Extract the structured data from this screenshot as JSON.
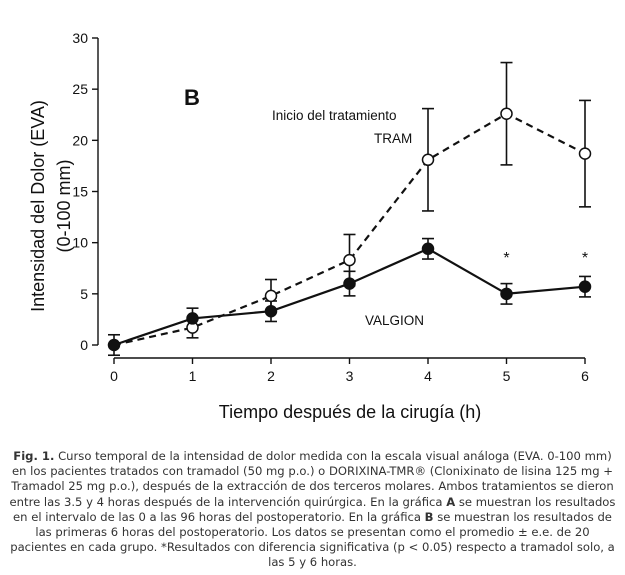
{
  "chart_data": {
    "type": "line",
    "panel_label": "B",
    "xlabel": "Tiempo después de la cirugía (h)",
    "ylabel_line1": "Intensidad del Dolor (EVA)",
    "ylabel_line2": "(0-100 mm)",
    "xlim": [
      0,
      6
    ],
    "ylim": [
      0,
      30
    ],
    "x_ticks": [
      "0",
      "1",
      "2",
      "3",
      "4",
      "5",
      "6"
    ],
    "y_ticks": [
      "0",
      "5",
      "10",
      "15",
      "20",
      "25",
      "30"
    ],
    "x": [
      0,
      1,
      2,
      3,
      4,
      5,
      6
    ],
    "series": [
      {
        "name": "VALGION",
        "style": "solid",
        "marker": "filled-circle",
        "values": [
          0,
          2.6,
          3.3,
          6.0,
          9.4,
          5.0,
          5.7
        ],
        "errors": [
          1.0,
          1.0,
          1.0,
          1.2,
          1.0,
          1.0,
          1.0
        ]
      },
      {
        "name": "TRAM",
        "style": "dashed",
        "marker": "open-circle",
        "values": [
          0,
          1.7,
          4.8,
          8.3,
          18.1,
          22.6,
          18.7
        ],
        "errors": [
          0,
          1.0,
          1.6,
          2.5,
          5.0,
          5.0,
          5.2
        ]
      }
    ],
    "annotations": {
      "inicio": "Inicio del tratamiento",
      "tram": "TRAM",
      "valgion": "VALGION",
      "star": "*"
    },
    "significant_x": [
      5,
      6
    ]
  },
  "caption": {
    "fig_label": "Fig. 1.",
    "p1": " Curso temporal de la intensidad de dolor medida con la escala visual análoga (EVA. 0-100 mm) en los pacientes tratados con tramadol (50 mg p.o.) o DORIXINA-TMR® (Clonixinato de lisina 125 mg + Tramadol 25 mg p.o.), después de la extracción de dos terceros molares. Ambos tratamientos se dieron entre las 3.5 y 4 horas después de la intervención quirúrgica. En la gráfica ",
    "a": "A",
    "p2": " se muestran los resultados en el intervalo de las 0 a las 96 horas del postoperatorio. En la gráfica ",
    "b": "B",
    "p3": " se muestran los resultados de las primeras 6 horas del postoperatorio. Los datos se presentan como el promedio ± e.e. de 20 pacientes en cada grupo. *Resultados con diferencia significativa (p < 0.05) respecto a tramadol solo, a las 5 y 6 horas."
  }
}
